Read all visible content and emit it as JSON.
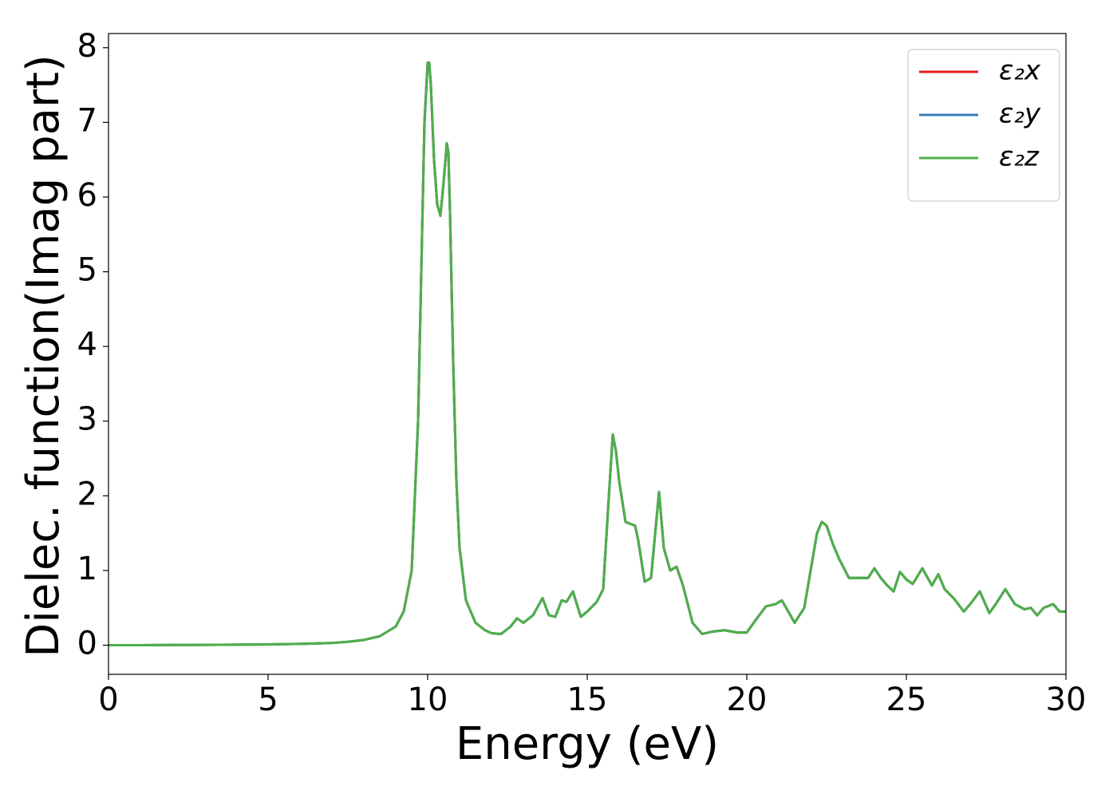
{
  "chart_data": {
    "type": "line",
    "xlabel": "Energy (eV)",
    "ylabel": "Dielec. function(Imag part)",
    "xlim": [
      0,
      30
    ],
    "ylim": [
      -0.39,
      8.19
    ],
    "xticks": [
      0,
      5,
      10,
      15,
      20,
      25,
      30
    ],
    "yticks": [
      0,
      1,
      2,
      3,
      4,
      5,
      6,
      7,
      8
    ],
    "grid": false,
    "legend": "upper right",
    "x": [
      0,
      1,
      2,
      3,
      4,
      5,
      6,
      7,
      7.5,
      8,
      8.5,
      9,
      9.25,
      9.5,
      9.7,
      9.8,
      9.9,
      10.0,
      10.05,
      10.1,
      10.2,
      10.3,
      10.4,
      10.5,
      10.6,
      10.65,
      10.7,
      10.8,
      10.9,
      11.0,
      11.2,
      11.5,
      11.8,
      12.0,
      12.3,
      12.6,
      12.8,
      13.0,
      13.3,
      13.6,
      13.8,
      14.0,
      14.2,
      14.35,
      14.55,
      14.8,
      15.0,
      15.3,
      15.5,
      15.65,
      15.8,
      15.9,
      16.0,
      16.2,
      16.5,
      16.6,
      16.8,
      17.0,
      17.25,
      17.4,
      17.6,
      17.8,
      18.0,
      18.3,
      18.6,
      18.9,
      19.3,
      19.7,
      20.0,
      20.3,
      20.6,
      20.9,
      21.1,
      21.5,
      21.8,
      22.0,
      22.2,
      22.35,
      22.5,
      22.7,
      22.9,
      23.2,
      23.5,
      23.8,
      24.0,
      24.2,
      24.4,
      24.6,
      24.8,
      25.0,
      25.2,
      25.5,
      25.8,
      26.0,
      26.2,
      26.5,
      26.8,
      27.0,
      27.3,
      27.6,
      27.8,
      28.1,
      28.4,
      28.7,
      28.9,
      29.1,
      29.3,
      29.6,
      29.8,
      30
    ],
    "series": [
      {
        "name": "ε₂x",
        "color": "#e41a1c",
        "values": [
          0,
          0,
          0.002,
          0.004,
          0.007,
          0.01,
          0.017,
          0.03,
          0.045,
          0.07,
          0.12,
          0.25,
          0.45,
          1.0,
          3.0,
          5.0,
          7.0,
          7.8,
          7.8,
          7.5,
          6.5,
          5.9,
          5.75,
          6.2,
          6.72,
          6.6,
          5.8,
          3.8,
          2.2,
          1.3,
          0.6,
          0.3,
          0.2,
          0.16,
          0.15,
          0.25,
          0.36,
          0.3,
          0.4,
          0.63,
          0.4,
          0.38,
          0.6,
          0.58,
          0.72,
          0.38,
          0.45,
          0.58,
          0.75,
          1.8,
          2.82,
          2.6,
          2.2,
          1.65,
          1.6,
          1.4,
          0.85,
          0.9,
          2.05,
          1.3,
          1.0,
          1.05,
          0.8,
          0.3,
          0.15,
          0.18,
          0.2,
          0.17,
          0.17,
          0.35,
          0.52,
          0.55,
          0.6,
          0.3,
          0.5,
          1.0,
          1.5,
          1.65,
          1.6,
          1.35,
          1.15,
          0.9,
          0.9,
          0.9,
          1.03,
          0.9,
          0.8,
          0.72,
          0.98,
          0.88,
          0.82,
          1.03,
          0.8,
          0.95,
          0.75,
          0.62,
          0.45,
          0.55,
          0.72,
          0.43,
          0.55,
          0.75,
          0.55,
          0.48,
          0.5,
          0.4,
          0.5,
          0.55,
          0.45,
          0.45
        ]
      },
      {
        "name": "ε₂y",
        "color": "#377eb8",
        "values": [
          0,
          0,
          0.002,
          0.004,
          0.007,
          0.01,
          0.017,
          0.03,
          0.045,
          0.07,
          0.12,
          0.25,
          0.45,
          1.0,
          3.0,
          5.0,
          7.0,
          7.8,
          7.8,
          7.5,
          6.5,
          5.9,
          5.75,
          6.2,
          6.72,
          6.6,
          5.8,
          3.8,
          2.2,
          1.3,
          0.6,
          0.3,
          0.2,
          0.16,
          0.15,
          0.25,
          0.36,
          0.3,
          0.4,
          0.63,
          0.4,
          0.38,
          0.6,
          0.58,
          0.72,
          0.38,
          0.45,
          0.58,
          0.75,
          1.8,
          2.82,
          2.6,
          2.2,
          1.65,
          1.6,
          1.4,
          0.85,
          0.9,
          2.05,
          1.3,
          1.0,
          1.05,
          0.8,
          0.3,
          0.15,
          0.18,
          0.2,
          0.17,
          0.17,
          0.35,
          0.52,
          0.55,
          0.6,
          0.3,
          0.5,
          1.0,
          1.5,
          1.65,
          1.6,
          1.35,
          1.15,
          0.9,
          0.9,
          0.9,
          1.03,
          0.9,
          0.8,
          0.72,
          0.98,
          0.88,
          0.82,
          1.03,
          0.8,
          0.95,
          0.75,
          0.62,
          0.45,
          0.55,
          0.72,
          0.43,
          0.55,
          0.75,
          0.55,
          0.48,
          0.5,
          0.4,
          0.5,
          0.55,
          0.45,
          0.45
        ]
      },
      {
        "name": "ε₂z",
        "color": "#4daf4a",
        "values": [
          0,
          0,
          0.002,
          0.004,
          0.007,
          0.01,
          0.017,
          0.03,
          0.045,
          0.07,
          0.12,
          0.25,
          0.45,
          1.0,
          3.0,
          5.0,
          7.0,
          7.8,
          7.8,
          7.5,
          6.5,
          5.9,
          5.75,
          6.2,
          6.72,
          6.6,
          5.8,
          3.8,
          2.2,
          1.3,
          0.6,
          0.3,
          0.2,
          0.16,
          0.15,
          0.25,
          0.36,
          0.3,
          0.4,
          0.63,
          0.4,
          0.38,
          0.6,
          0.58,
          0.72,
          0.38,
          0.45,
          0.58,
          0.75,
          1.8,
          2.82,
          2.6,
          2.2,
          1.65,
          1.6,
          1.4,
          0.85,
          0.9,
          2.05,
          1.3,
          1.0,
          1.05,
          0.8,
          0.3,
          0.15,
          0.18,
          0.2,
          0.17,
          0.17,
          0.35,
          0.52,
          0.55,
          0.6,
          0.3,
          0.5,
          1.0,
          1.5,
          1.65,
          1.6,
          1.35,
          1.15,
          0.9,
          0.9,
          0.9,
          1.03,
          0.9,
          0.8,
          0.72,
          0.98,
          0.88,
          0.82,
          1.03,
          0.8,
          0.95,
          0.75,
          0.62,
          0.45,
          0.55,
          0.72,
          0.43,
          0.55,
          0.75,
          0.55,
          0.48,
          0.5,
          0.4,
          0.5,
          0.55,
          0.45,
          0.45
        ]
      }
    ]
  }
}
